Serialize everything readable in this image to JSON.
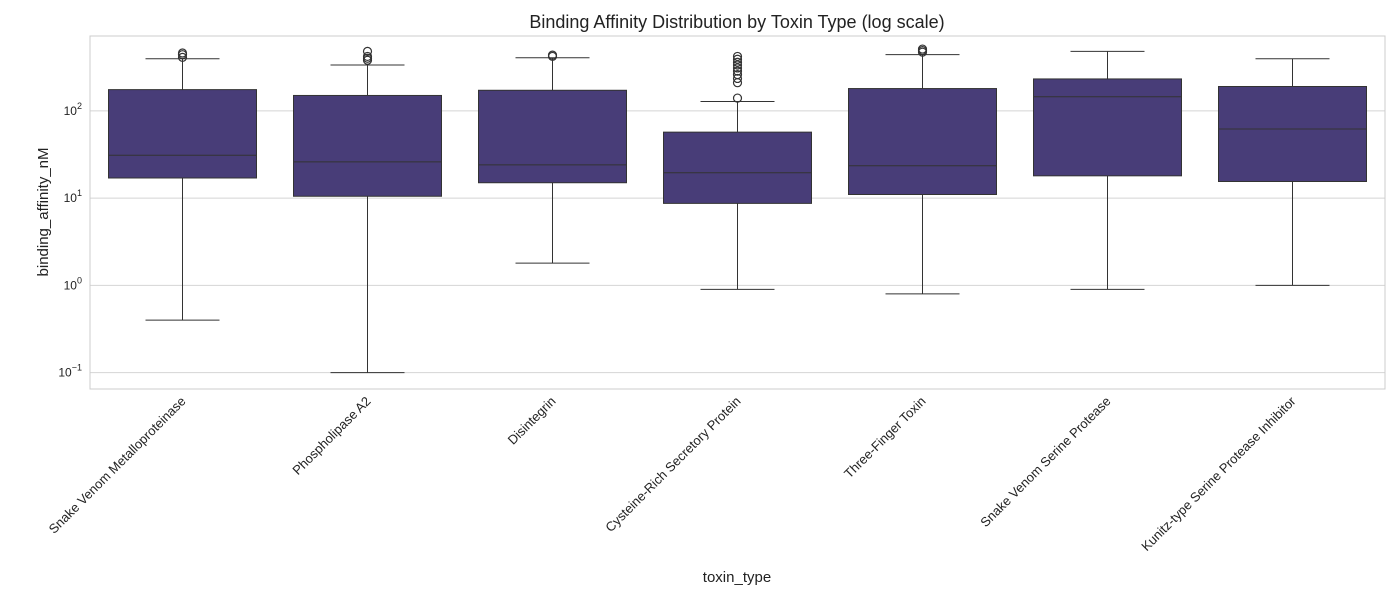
{
  "chart_data": {
    "type": "box",
    "title": "Binding Affinity Distribution by Toxin Type (log scale)",
    "xlabel": "toxin_type",
    "ylabel": "binding_affinity_nM",
    "yscale": "log",
    "ylim": [
      0.065,
      720
    ],
    "yticks": [
      {
        "value": 0.1,
        "base": "10",
        "exp": "−1"
      },
      {
        "value": 1,
        "base": "10",
        "exp": "0"
      },
      {
        "value": 10,
        "base": "10",
        "exp": "1"
      },
      {
        "value": 100,
        "base": "10",
        "exp": "2"
      }
    ],
    "grid": true,
    "box_color": "#483D78",
    "categories": [
      "Snake Venom Metalloproteinase",
      "Phospholipase A2",
      "Disintegrin",
      "Cysteine-Rich Secretory Protein",
      "Three-Finger Toxin",
      "Snake Venom Serine Protease",
      "Kunitz-type Serine Protease Inhibitor"
    ],
    "boxes": [
      {
        "whisker_low": 0.4,
        "q1": 17,
        "median": 31,
        "q3": 175,
        "whisker_high": 395,
        "outliers": [
          410,
          440,
          460
        ]
      },
      {
        "whisker_low": 0.1,
        "q1": 10.5,
        "median": 26,
        "q3": 150,
        "whisker_high": 335,
        "outliers": [
          380,
          400,
          420,
          480
        ]
      },
      {
        "whisker_low": 1.8,
        "q1": 15,
        "median": 24,
        "q3": 172,
        "whisker_high": 405,
        "outliers": [
          420,
          435
        ]
      },
      {
        "whisker_low": 0.9,
        "q1": 8.7,
        "median": 19.5,
        "q3": 57,
        "whisker_high": 128,
        "outliers": [
          140,
          210,
          235,
          260,
          285,
          310,
          335,
          360,
          390,
          420
        ]
      },
      {
        "whisker_low": 0.8,
        "q1": 11,
        "median": 23.5,
        "q3": 180,
        "whisker_high": 440,
        "outliers": [
          470,
          490,
          510
        ]
      },
      {
        "whisker_low": 0.9,
        "q1": 18,
        "median": 145,
        "q3": 232,
        "whisker_high": 480,
        "outliers": []
      },
      {
        "whisker_low": 1.0,
        "q1": 15.5,
        "median": 62,
        "q3": 190,
        "whisker_high": 395,
        "outliers": []
      }
    ]
  }
}
